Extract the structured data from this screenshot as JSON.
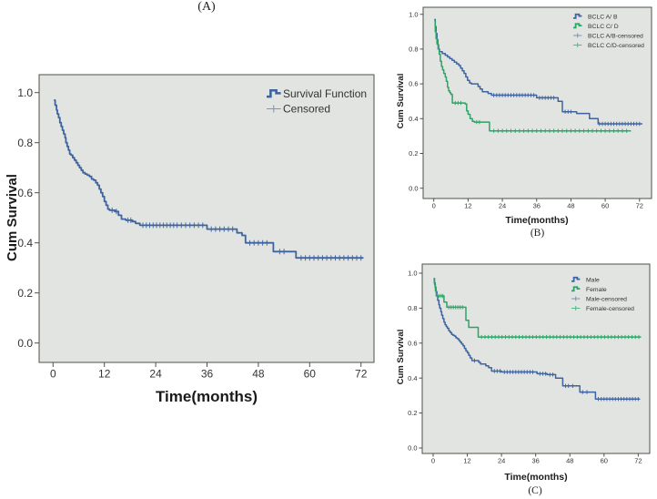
{
  "figure": {
    "background": "#ffffff",
    "description": "Three Kaplan-Meier cumulative survival plots"
  },
  "colors": {
    "blue": "#3f63a0",
    "green": "#2aa567",
    "censored_blue": "#8295ab",
    "censored_green": "#5cb58b",
    "plot_bg": "#e1e4e0",
    "frame": "#4f5149",
    "tick_text": "#333333",
    "label_text": "#1a1a1a",
    "legend_text": "#333333"
  },
  "chart_data": [
    {
      "id": "A",
      "type": "line",
      "subtype": "kaplan-meier-step",
      "caption": "(A)",
      "xlabel": "Time(months)",
      "ylabel": "Cum Survival",
      "xlim": [
        0,
        72
      ],
      "ylim": [
        0.0,
        1.0
      ],
      "x_ticks": [
        0,
        12,
        24,
        36,
        48,
        60,
        72
      ],
      "y_ticks": [
        0.0,
        0.2,
        0.4,
        0.6,
        0.8,
        1.0
      ],
      "grid": false,
      "legend_position": "top-right-inside",
      "legend": [
        {
          "label": "Survival Function",
          "symbol": "step",
          "color": "#3f63a0"
        },
        {
          "label": "Censored",
          "symbol": "plus",
          "color": "#8295ab"
        }
      ],
      "series": [
        {
          "name": "Survival Function",
          "color": "#3f63a0",
          "t_end": 72.5,
          "points": [
            [
              0.2,
              0.97
            ],
            [
              0.5,
              0.95
            ],
            [
              0.8,
              0.93
            ],
            [
              1.0,
              0.915
            ],
            [
              1.3,
              0.9
            ],
            [
              1.6,
              0.88
            ],
            [
              1.9,
              0.865
            ],
            [
              2.2,
              0.85
            ],
            [
              2.5,
              0.835
            ],
            [
              2.8,
              0.82
            ],
            [
              3.0,
              0.8
            ],
            [
              3.3,
              0.785
            ],
            [
              3.6,
              0.77
            ],
            [
              3.9,
              0.755
            ],
            [
              4.2,
              0.75
            ],
            [
              4.6,
              0.74
            ],
            [
              5.0,
              0.73
            ],
            [
              5.4,
              0.72
            ],
            [
              5.8,
              0.71
            ],
            [
              6.2,
              0.7
            ],
            [
              6.6,
              0.69
            ],
            [
              7.0,
              0.68
            ],
            [
              7.5,
              0.675
            ],
            [
              8.0,
              0.67
            ],
            [
              8.5,
              0.665
            ],
            [
              9.0,
              0.655
            ],
            [
              9.5,
              0.65
            ],
            [
              10.0,
              0.64
            ],
            [
              10.4,
              0.63
            ],
            [
              10.8,
              0.615
            ],
            [
              11.2,
              0.6
            ],
            [
              11.6,
              0.585
            ],
            [
              12.0,
              0.565
            ],
            [
              12.4,
              0.55
            ],
            [
              12.8,
              0.535
            ],
            [
              13.2,
              0.53
            ],
            [
              14.5,
              0.525
            ],
            [
              15.3,
              0.51
            ],
            [
              16.0,
              0.495
            ],
            [
              17.0,
              0.49
            ],
            [
              18.5,
              0.485
            ],
            [
              19.3,
              0.478
            ],
            [
              20.3,
              0.47
            ],
            [
              36.0,
              0.455
            ],
            [
              43.0,
              0.44
            ],
            [
              44.2,
              0.43
            ],
            [
              45.0,
              0.4
            ],
            [
              51.5,
              0.365
            ],
            [
              56.8,
              0.34
            ]
          ],
          "censor_times": [
            13.8,
            14.8,
            17.5,
            18.2,
            21,
            21.8,
            22.6,
            23.4,
            24.2,
            25,
            25.8,
            26.6,
            27.4,
            28.2,
            29,
            30,
            31,
            32,
            33,
            34,
            35,
            37,
            38,
            39,
            40,
            41,
            42,
            46,
            47,
            48,
            49,
            50,
            53,
            54,
            58,
            59,
            60,
            61,
            62,
            63,
            64,
            65,
            66,
            67,
            68,
            69,
            70,
            71,
            72
          ]
        }
      ]
    },
    {
      "id": "B",
      "type": "line",
      "subtype": "kaplan-meier-step",
      "caption": "(B)",
      "xlabel": "Time(months)",
      "ylabel": "Cum Survival",
      "xlim": [
        0,
        72
      ],
      "ylim": [
        0.0,
        1.0
      ],
      "x_ticks": [
        0,
        12,
        24,
        36,
        48,
        60,
        72
      ],
      "y_ticks": [
        0.0,
        0.2,
        0.4,
        0.6,
        0.8,
        1.0
      ],
      "grid": false,
      "legend_position": "top-right-inside",
      "legend": [
        {
          "label": "BCLC A/ B",
          "symbol": "step",
          "color": "#3f63a0"
        },
        {
          "label": "BCLC C/ D",
          "symbol": "step",
          "color": "#2aa567"
        },
        {
          "label": "BCLC A/B-censored",
          "symbol": "plus",
          "color": "#8295ab"
        },
        {
          "label": "BCLC C/D-censored",
          "symbol": "plus",
          "color": "#5cb58b"
        }
      ],
      "series": [
        {
          "name": "BCLC A/ B",
          "color": "#3f63a0",
          "t_end": 73,
          "points": [
            [
              0.2,
              0.97
            ],
            [
              0.5,
              0.93
            ],
            [
              0.8,
              0.89
            ],
            [
              1.1,
              0.855
            ],
            [
              1.4,
              0.825
            ],
            [
              1.7,
              0.8
            ],
            [
              2.0,
              0.785
            ],
            [
              3.0,
              0.775
            ],
            [
              4.0,
              0.765
            ],
            [
              4.8,
              0.755
            ],
            [
              5.6,
              0.745
            ],
            [
              6.4,
              0.735
            ],
            [
              7.2,
              0.725
            ],
            [
              8.0,
              0.715
            ],
            [
              8.8,
              0.705
            ],
            [
              9.4,
              0.69
            ],
            [
              10.0,
              0.675
            ],
            [
              10.6,
              0.66
            ],
            [
              11.2,
              0.64
            ],
            [
              11.8,
              0.62
            ],
            [
              12.5,
              0.605
            ],
            [
              13.2,
              0.6
            ],
            [
              15.5,
              0.585
            ],
            [
              16.2,
              0.57
            ],
            [
              17.0,
              0.555
            ],
            [
              19.0,
              0.545
            ],
            [
              20.2,
              0.535
            ],
            [
              36.0,
              0.52
            ],
            [
              43.5,
              0.5
            ],
            [
              45.0,
              0.44
            ],
            [
              50.0,
              0.43
            ],
            [
              54.5,
              0.4
            ],
            [
              57.5,
              0.37
            ]
          ],
          "censor_times": [
            21,
            22,
            23,
            24,
            25,
            26,
            27,
            28,
            29,
            30,
            31,
            32,
            33,
            34,
            35,
            37,
            38,
            39,
            40,
            41,
            42,
            46,
            47,
            48,
            58,
            59,
            60,
            61,
            62,
            63,
            64,
            65,
            66,
            67,
            68,
            69,
            70,
            71,
            72
          ]
        },
        {
          "name": "BCLC C/ D",
          "color": "#2aa567",
          "t_end": 69,
          "points": [
            [
              0.2,
              0.96
            ],
            [
              0.5,
              0.9
            ],
            [
              0.8,
              0.86
            ],
            [
              1.1,
              0.83
            ],
            [
              1.5,
              0.8
            ],
            [
              1.9,
              0.77
            ],
            [
              2.3,
              0.73
            ],
            [
              2.7,
              0.7
            ],
            [
              3.1,
              0.68
            ],
            [
              3.5,
              0.66
            ],
            [
              4.0,
              0.64
            ],
            [
              4.4,
              0.615
            ],
            [
              4.8,
              0.58
            ],
            [
              5.2,
              0.56
            ],
            [
              5.6,
              0.55
            ],
            [
              6.0,
              0.54
            ],
            [
              6.5,
              0.49
            ],
            [
              11.0,
              0.485
            ],
            [
              11.5,
              0.445
            ],
            [
              12.0,
              0.425
            ],
            [
              12.7,
              0.4
            ],
            [
              13.5,
              0.385
            ],
            [
              14.2,
              0.38
            ],
            [
              19.5,
              0.33
            ]
          ],
          "censor_times": [
            7.5,
            8.5,
            9.5,
            15,
            16,
            21,
            22.5,
            24,
            25.5,
            27,
            28.5,
            30,
            31.5,
            33,
            34.5,
            36,
            37.5,
            39,
            40.5,
            42,
            43.5,
            45,
            46.5,
            48,
            49.5,
            51,
            52.5,
            54,
            55.5,
            57,
            58.5,
            60,
            61.5,
            63,
            64.5,
            66,
            67.5
          ]
        }
      ]
    },
    {
      "id": "C",
      "type": "line",
      "subtype": "kaplan-meier-step",
      "caption": "(C)",
      "xlabel": "Time(months)",
      "ylabel": "Cum Survival",
      "xlim": [
        0,
        72
      ],
      "ylim": [
        0.0,
        1.0
      ],
      "x_ticks": [
        0,
        12,
        24,
        36,
        48,
        60,
        72
      ],
      "y_ticks": [
        0.0,
        0.2,
        0.4,
        0.6,
        0.8,
        1.0
      ],
      "grid": false,
      "legend_position": "top-right-inside",
      "legend": [
        {
          "label": "Male",
          "symbol": "step",
          "color": "#3f63a0"
        },
        {
          "label": "Female",
          "symbol": "step",
          "color": "#2aa567"
        },
        {
          "label": "Male-censored",
          "symbol": "plus",
          "color": "#8295ab"
        },
        {
          "label": "Female-censored",
          "symbol": "plus",
          "color": "#5cb58b"
        }
      ],
      "series": [
        {
          "name": "Male",
          "color": "#3f63a0",
          "t_end": 72.5,
          "points": [
            [
              0.2,
              0.97
            ],
            [
              0.4,
              0.945
            ],
            [
              0.7,
              0.92
            ],
            [
              1.0,
              0.895
            ],
            [
              1.3,
              0.87
            ],
            [
              1.6,
              0.845
            ],
            [
              2.0,
              0.82
            ],
            [
              2.3,
              0.8
            ],
            [
              2.7,
              0.78
            ],
            [
              3.0,
              0.76
            ],
            [
              3.4,
              0.74
            ],
            [
              3.8,
              0.72
            ],
            [
              4.2,
              0.705
            ],
            [
              4.6,
              0.695
            ],
            [
              5.0,
              0.685
            ],
            [
              5.5,
              0.67
            ],
            [
              6.0,
              0.66
            ],
            [
              6.5,
              0.65
            ],
            [
              7.0,
              0.645
            ],
            [
              7.5,
              0.64
            ],
            [
              8.0,
              0.63
            ],
            [
              8.5,
              0.625
            ],
            [
              9.0,
              0.615
            ],
            [
              9.5,
              0.605
            ],
            [
              10.0,
              0.595
            ],
            [
              10.5,
              0.585
            ],
            [
              11.0,
              0.57
            ],
            [
              11.5,
              0.555
            ],
            [
              12.0,
              0.545
            ],
            [
              12.5,
              0.53
            ],
            [
              13.0,
              0.515
            ],
            [
              13.6,
              0.5
            ],
            [
              16.0,
              0.49
            ],
            [
              16.6,
              0.48
            ],
            [
              18.5,
              0.47
            ],
            [
              19.5,
              0.46
            ],
            [
              20.5,
              0.44
            ],
            [
              24.0,
              0.435
            ],
            [
              36.5,
              0.425
            ],
            [
              40.0,
              0.42
            ],
            [
              43.0,
              0.4
            ],
            [
              45.5,
              0.355
            ],
            [
              51.5,
              0.32
            ],
            [
              57.0,
              0.28
            ]
          ],
          "censor_times": [
            14.5,
            21.5,
            22.5,
            23.5,
            25,
            26,
            27,
            28,
            29,
            30,
            31,
            32,
            33,
            34,
            35,
            37.5,
            38.5,
            39.5,
            41,
            42,
            46.5,
            47.5,
            49,
            52.5,
            54,
            58,
            59,
            60,
            61,
            62,
            63,
            64,
            65,
            66,
            67,
            68,
            69,
            70,
            71,
            72
          ]
        },
        {
          "name": "Female",
          "color": "#2aa567",
          "t_end": 73,
          "points": [
            [
              0.2,
              0.97
            ],
            [
              0.5,
              0.935
            ],
            [
              0.8,
              0.9
            ],
            [
              1.1,
              0.87
            ],
            [
              3.8,
              0.835
            ],
            [
              4.8,
              0.805
            ],
            [
              11.5,
              0.73
            ],
            [
              12.5,
              0.69
            ],
            [
              15.8,
              0.635
            ]
          ],
          "censor_times": [
            2,
            2.8,
            3.4,
            5.5,
            6.3,
            7.1,
            7.9,
            8.7,
            9.5,
            10.3,
            17,
            18.2,
            19.4,
            20.6,
            21.8,
            23,
            24.2,
            25.4,
            26.6,
            27.8,
            29,
            30.2,
            31.4,
            32.6,
            33.8,
            35,
            36.2,
            37.4,
            38.6,
            39.8,
            41,
            42.2,
            43.4,
            44.6,
            45.8,
            47,
            48.2,
            49.4,
            50.6,
            51.8,
            53,
            54.2,
            55.4,
            56.6,
            57.8,
            59,
            60.2,
            61.4,
            62.6,
            63.8,
            65,
            66.2,
            67.4,
            68.6,
            69.8,
            71,
            72.2
          ]
        }
      ]
    }
  ]
}
